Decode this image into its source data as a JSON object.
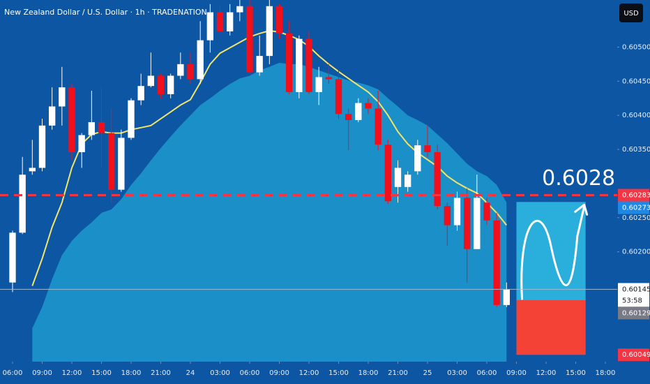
{
  "chart_data": {
    "type": "candlestick",
    "title": "New Zealand Dollar / U.S. Dollar · 1h · TRADENATION",
    "currency": "USD",
    "annotation": "0.6028",
    "up_color": "#ffffff",
    "down_color": "#f20f1c",
    "grid": false,
    "x": [
      0,
      1,
      2,
      3,
      4,
      5,
      6,
      7,
      8,
      9,
      10,
      11,
      12,
      13,
      14,
      15,
      16,
      17,
      18,
      19,
      20,
      21,
      22,
      23,
      24,
      25,
      26,
      27,
      28,
      29,
      30,
      31,
      32,
      33,
      34,
      35,
      36,
      37,
      38,
      39,
      40,
      41,
      42,
      43,
      44,
      45,
      46,
      47,
      48,
      49,
      50
    ],
    "open": [
      0.60155,
      0.60228,
      0.60318,
      0.60323,
      0.60385,
      0.60413,
      0.60441,
      0.60346,
      0.60371,
      0.6039,
      0.60374,
      0.60291,
      0.60367,
      0.60422,
      0.60443,
      0.60458,
      0.60431,
      0.60458,
      0.60475,
      0.60453,
      0.6051,
      0.60551,
      0.60523,
      0.60551,
      0.6056,
      0.60463,
      0.60487,
      0.6056,
      0.6052,
      0.60434,
      0.60512,
      0.60434,
      0.60456,
      0.60453,
      0.60402,
      0.60393,
      0.60418,
      0.6041,
      0.60357,
      0.60295,
      0.60295,
      0.60318,
      0.60356,
      0.60346,
      0.60267,
      0.60239,
      0.60279,
      0.60204,
      0.60272,
      0.60246,
      0.60122
    ],
    "high": [
      0.60231,
      0.60339,
      0.60364,
      0.60395,
      0.60441,
      0.60471,
      0.60446,
      0.60374,
      0.60436,
      0.60441,
      0.6041,
      0.60379,
      0.60425,
      0.60461,
      0.60492,
      0.60461,
      0.60461,
      0.60492,
      0.60492,
      0.60538,
      0.60563,
      0.6056,
      0.60563,
      0.60569,
      0.60569,
      0.60517,
      0.60569,
      0.60563,
      0.60538,
      0.60517,
      0.60523,
      0.60471,
      0.60475,
      0.60466,
      0.6041,
      0.60425,
      0.60425,
      0.60436,
      0.60364,
      0.60334,
      0.60318,
      0.60364,
      0.60385,
      0.60357,
      0.60272,
      0.60288,
      0.60293,
      0.60313,
      0.60279,
      0.60257,
      0.60155
    ],
    "low": [
      0.60141,
      0.60226,
      0.60313,
      0.60318,
      0.60379,
      0.60385,
      0.60334,
      0.60323,
      0.60364,
      0.60323,
      0.60272,
      0.60288,
      0.60364,
      0.60415,
      0.60441,
      0.60425,
      0.60425,
      0.60453,
      0.60446,
      0.60446,
      0.60492,
      0.6052,
      0.60517,
      0.60538,
      0.60461,
      0.60458,
      0.60475,
      0.60512,
      0.60431,
      0.60425,
      0.60431,
      0.60415,
      0.60446,
      0.60395,
      0.60349,
      0.6039,
      0.60402,
      0.60349,
      0.6027,
      0.60272,
      0.60288,
      0.60313,
      0.60339,
      0.60262,
      0.60209,
      0.60231,
      0.60155,
      0.60204,
      0.60239,
      0.60119,
      0.60119
    ],
    "close": [
      0.60228,
      0.60313,
      0.60323,
      0.60385,
      0.60413,
      0.60441,
      0.60346,
      0.60371,
      0.6039,
      0.60374,
      0.60291,
      0.60367,
      0.60422,
      0.60443,
      0.60458,
      0.60431,
      0.60458,
      0.60475,
      0.60453,
      0.6051,
      0.60551,
      0.60523,
      0.60551,
      0.6056,
      0.60463,
      0.60487,
      0.6056,
      0.6052,
      0.60434,
      0.60512,
      0.60434,
      0.60456,
      0.60453,
      0.60402,
      0.60393,
      0.60418,
      0.6041,
      0.60357,
      0.60274,
      0.60323,
      0.60313,
      0.60356,
      0.60346,
      0.60267,
      0.60239,
      0.60279,
      0.60204,
      0.60279,
      0.60246,
      0.60122,
      0.60145
    ],
    "overlays": [
      {
        "type": "area",
        "color": "#1a8fc8",
        "values": [
          null,
          null,
          0.60088,
          0.60119,
          0.6016,
          0.60195,
          0.60216,
          0.60231,
          0.60243,
          0.60257,
          0.60262,
          0.60277,
          0.60298,
          0.60315,
          0.60334,
          0.60352,
          0.60369,
          0.60385,
          0.604,
          0.60415,
          0.60425,
          0.60436,
          0.60446,
          0.60454,
          0.60458,
          0.60466,
          0.60471,
          0.60477,
          0.60475,
          0.60475,
          0.60471,
          0.60466,
          0.60461,
          0.60456,
          0.60451,
          0.60448,
          0.60444,
          0.60438,
          0.60425,
          0.60413,
          0.604,
          0.60393,
          0.60385,
          0.60372,
          0.60359,
          0.60344,
          0.60329,
          0.60318,
          0.60311,
          0.60298,
          0.60272
        ]
      },
      {
        "type": "line",
        "color": "#f3e46a",
        "values": [
          null,
          null,
          0.6015,
          0.6019,
          0.60236,
          0.60272,
          0.60323,
          0.60358,
          0.60372,
          0.60376,
          0.60374,
          0.60374,
          0.60379,
          0.60382,
          0.60385,
          0.60395,
          0.60405,
          0.60415,
          0.60423,
          0.60448,
          0.60475,
          0.60491,
          0.60499,
          0.60507,
          0.60515,
          0.6052,
          0.60524,
          0.60522,
          0.60517,
          0.60511,
          0.60501,
          0.60487,
          0.60475,
          0.60464,
          0.60454,
          0.60444,
          0.60434,
          0.6042,
          0.604,
          0.60376,
          0.60358,
          0.60345,
          0.60335,
          0.60325,
          0.60311,
          0.60301,
          0.60293,
          0.60286,
          0.60272,
          0.60257,
          0.60239
        ]
      }
    ],
    "price_lines": [
      {
        "value": 0.60283,
        "label": "0.60283",
        "color": "#f23645",
        "text_color": "#ffffff",
        "style": "dashed"
      },
      {
        "value": 0.60145,
        "label": "0.60145",
        "countdown": "53:58",
        "color": "#ffffff",
        "text_color": "#131722",
        "style": "solid"
      }
    ],
    "position": {
      "x_start": 51,
      "x_end": 58,
      "target": {
        "value": 0.60273,
        "label": "0.60273"
      },
      "entry": {
        "value": 0.60129,
        "label": "0.60129"
      },
      "stop": {
        "value": 0.60049,
        "label": "0.60049"
      },
      "target_color": "#2aaedb",
      "stop_color": "#f44336",
      "target_label_color": "#1e88e5",
      "entry_label_color": "#787b86",
      "stop_label_color": "#f23645"
    },
    "ylim": [
      0.60039,
      0.60569
    ],
    "yticks": [
      {
        "value": 0.605,
        "label": "0.60500"
      },
      {
        "value": 0.6045,
        "label": "0.60450"
      },
      {
        "value": 0.604,
        "label": "0.60400"
      },
      {
        "value": 0.6035,
        "label": "0.60350"
      },
      {
        "value": 0.6025,
        "label": "0.60250"
      },
      {
        "value": 0.602,
        "label": "0.60200"
      }
    ],
    "xlim": [
      -1.27,
      61.2
    ],
    "xticks": [
      {
        "value": 0,
        "label": "06:00"
      },
      {
        "value": 3,
        "label": "09:00"
      },
      {
        "value": 6,
        "label": "12:00"
      },
      {
        "value": 9,
        "label": "15:00"
      },
      {
        "value": 12,
        "label": "18:00"
      },
      {
        "value": 15,
        "label": "21:00"
      },
      {
        "value": 18,
        "label": "24"
      },
      {
        "value": 21,
        "label": "03:00"
      },
      {
        "value": 24,
        "label": "06:00"
      },
      {
        "value": 27,
        "label": "09:00"
      },
      {
        "value": 30,
        "label": "12:00"
      },
      {
        "value": 33,
        "label": "15:00"
      },
      {
        "value": 36,
        "label": "18:00"
      },
      {
        "value": 39,
        "label": "21:00"
      },
      {
        "value": 42,
        "label": "25"
      },
      {
        "value": 45,
        "label": "03:00"
      },
      {
        "value": 48,
        "label": "06:00"
      },
      {
        "value": 51,
        "label": "09:00"
      },
      {
        "value": 54,
        "label": "12:00"
      },
      {
        "value": 57,
        "label": "15:00"
      },
      {
        "value": 60,
        "label": "18:00"
      }
    ]
  }
}
